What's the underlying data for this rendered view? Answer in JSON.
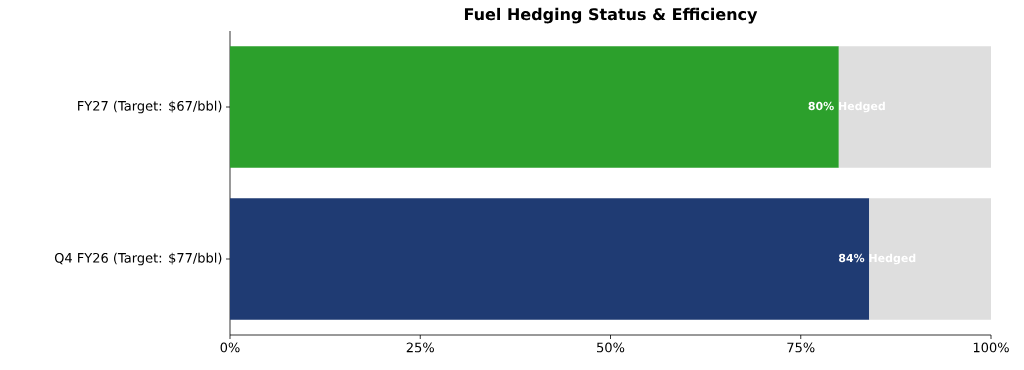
{
  "chart_data": {
    "type": "bar",
    "title": "Fuel Hedging Status & Efficiency",
    "orientation": "horizontal",
    "stacked": true,
    "categories": [
      "FY27 (Target: $67/bbl)",
      "Q4 FY26 (Target: $77/bbl)"
    ],
    "series": [
      {
        "colors": [
          "#2ca02c",
          "#1f3b73"
        ],
        "values": [
          80,
          84
        ],
        "value_labels": [
          "80% Hedged",
          "84% Hedged"
        ]
      },
      {
        "color": "#dedede",
        "values": [
          20,
          16
        ]
      }
    ],
    "xlim": [
      0,
      100
    ],
    "xticks": [
      {
        "value": 0,
        "label": "0%"
      },
      {
        "value": 25,
        "label": "25%"
      },
      {
        "value": 50,
        "label": "50%"
      },
      {
        "value": 75,
        "label": "75%"
      },
      {
        "value": 100,
        "label": "100%"
      }
    ]
  }
}
